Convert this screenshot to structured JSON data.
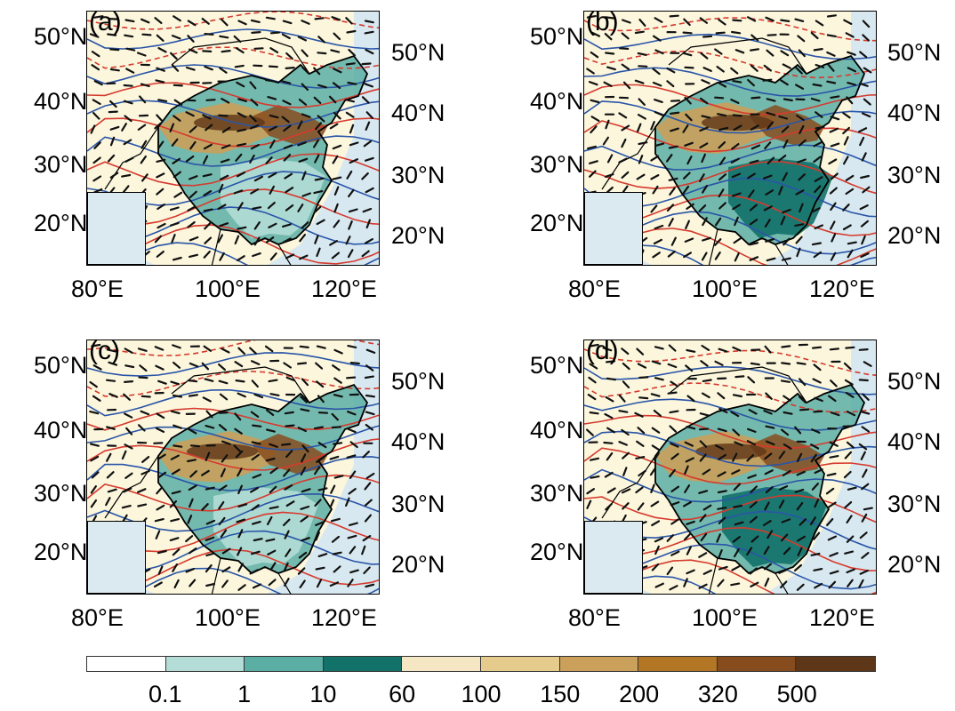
{
  "panels": [
    {
      "label": "(a)",
      "lat_left": [
        "50°N",
        "40°N",
        "30°N",
        "20°N"
      ],
      "lat_right": [
        "50°N",
        "40°N",
        "30°N",
        "20°N"
      ],
      "lon": [
        "80°E",
        "100°E",
        "120°E"
      ]
    },
    {
      "label": "(b)",
      "lat_left": [
        "50°N",
        "40°N",
        "30°N",
        "20°N"
      ],
      "lat_right": [
        "50°N",
        "40°N",
        "30°N",
        "20°N"
      ],
      "lon": [
        "80°E",
        "100°E",
        "120°E"
      ]
    },
    {
      "label": "(c)",
      "lat_left": [
        "50°N",
        "40°N",
        "30°N",
        "20°N"
      ],
      "lat_right": [
        "50°N",
        "40°N",
        "30°N",
        "20°N"
      ],
      "lon": [
        "80°E",
        "100°E",
        "120°E"
      ]
    },
    {
      "label": "(d)",
      "lat_left": [
        "50°N",
        "40°N",
        "30°N",
        "20°N"
      ],
      "lat_right": [
        "50°N",
        "40°N",
        "30°N",
        "20°N"
      ],
      "lon": [
        "80°E",
        "100°E",
        "120°E"
      ]
    }
  ],
  "colorbar": {
    "colors": [
      "#ffffff",
      "#b3ddd6",
      "#5aaea4",
      "#127169",
      "#f5e6c4",
      "#e5cc8c",
      "#caa05a",
      "#b27624",
      "#874c1e",
      "#5e3618"
    ],
    "tick_labels": [
      "0.1",
      "1",
      "10",
      "60",
      "100",
      "150",
      "200",
      "320",
      "500"
    ]
  },
  "map_colors": {
    "land": "#fbf6dc",
    "ocean": "#d7e8f0",
    "contour_red": "#d63a2e",
    "contour_blue": "#2a55a8",
    "wind_barb": "#111111",
    "boundary": "#000000"
  }
}
